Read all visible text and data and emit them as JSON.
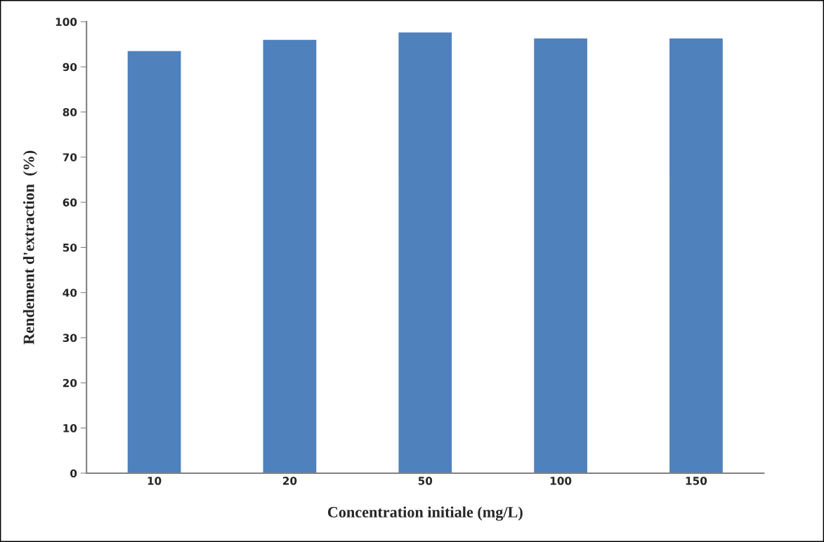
{
  "chart_data": {
    "type": "bar",
    "xlabel": "Concentration initiale (mg/L)",
    "ylabel": "Rendement d'extraction  (%)",
    "categories": [
      "10",
      "20",
      "50",
      "100",
      "150"
    ],
    "values": [
      93.6,
      96.1,
      97.7,
      96.4,
      96.4
    ],
    "color": "#4f81bd",
    "ylim": [
      0,
      100
    ],
    "yticks": [
      0,
      10,
      20,
      30,
      40,
      50,
      60,
      70,
      80,
      90,
      100
    ],
    "grid": false,
    "legend": false
  }
}
